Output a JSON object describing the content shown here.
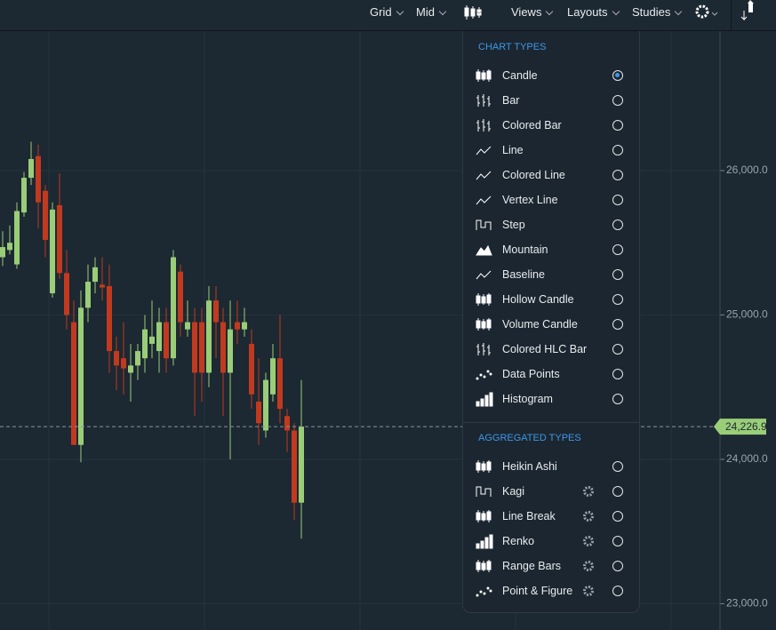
{
  "toolbar": {
    "items": [
      "Grid",
      "Mid",
      "Views",
      "Layouts",
      "Studies"
    ]
  },
  "menu": {
    "chart_types_heading": "CHART TYPES",
    "chart_types": [
      {
        "label": "Candle",
        "selected": true
      },
      {
        "label": "Bar",
        "selected": false
      },
      {
        "label": "Colored Bar",
        "selected": false
      },
      {
        "label": "Line",
        "selected": false
      },
      {
        "label": "Colored Line",
        "selected": false
      },
      {
        "label": "Vertex Line",
        "selected": false
      },
      {
        "label": "Step",
        "selected": false
      },
      {
        "label": "Mountain",
        "selected": false
      },
      {
        "label": "Baseline",
        "selected": false
      },
      {
        "label": "Hollow Candle",
        "selected": false
      },
      {
        "label": "Volume Candle",
        "selected": false
      },
      {
        "label": "Colored HLC Bar",
        "selected": false
      },
      {
        "label": "Data Points",
        "selected": false
      },
      {
        "label": "Histogram",
        "selected": false
      }
    ],
    "aggregated_heading": "AGGREGATED TYPES",
    "aggregated_types": [
      {
        "label": "Heikin Ashi",
        "selected": false,
        "settings": false
      },
      {
        "label": "Kagi",
        "selected": false,
        "settings": true
      },
      {
        "label": "Line Break",
        "selected": false,
        "settings": true
      },
      {
        "label": "Renko",
        "selected": false,
        "settings": true
      },
      {
        "label": "Range Bars",
        "selected": false,
        "settings": true
      },
      {
        "label": "Point & Figure",
        "selected": false,
        "settings": true
      }
    ]
  },
  "price_chart": {
    "ylim": [
      22818,
      26966
    ],
    "yticks": [
      {
        "value": 23000,
        "label": "23,000.0"
      },
      {
        "value": 24000,
        "label": "24,000.0"
      },
      {
        "value": 25000,
        "label": "25,000.0"
      },
      {
        "value": 26000,
        "label": "26,000.0"
      }
    ],
    "current_price": {
      "value": 24226.9,
      "label": "24,226.9"
    },
    "up_color": "#9acd78",
    "down_color": "#c13a1f",
    "candles": [
      {
        "open": 25400,
        "high": 25580,
        "low": 25340,
        "close": 25470
      },
      {
        "open": 25450,
        "high": 25620,
        "low": 25420,
        "close": 25500
      },
      {
        "open": 25350,
        "high": 25780,
        "low": 25320,
        "close": 25720
      },
      {
        "open": 25710,
        "high": 25990,
        "low": 25680,
        "close": 25950
      },
      {
        "open": 25950,
        "high": 26200,
        "low": 25900,
        "close": 26080
      },
      {
        "open": 26100,
        "high": 26180,
        "low": 25600,
        "close": 25780
      },
      {
        "open": 25860,
        "high": 25900,
        "low": 25400,
        "close": 25520
      },
      {
        "open": 25150,
        "high": 25780,
        "low": 25120,
        "close": 25730
      },
      {
        "open": 25760,
        "high": 25980,
        "low": 25250,
        "close": 25290
      },
      {
        "open": 25290,
        "high": 25450,
        "low": 24900,
        "close": 25000
      },
      {
        "open": 24950,
        "high": 25100,
        "low": 24100,
        "close": 24100
      },
      {
        "open": 24100,
        "high": 25170,
        "low": 23980,
        "close": 25050
      },
      {
        "open": 25050,
        "high": 25350,
        "low": 24950,
        "close": 25230
      },
      {
        "open": 25230,
        "high": 25400,
        "low": 25150,
        "close": 25330
      },
      {
        "open": 25210,
        "high": 25400,
        "low": 25100,
        "close": 25190
      },
      {
        "open": 25200,
        "high": 25350,
        "low": 24600,
        "close": 24750
      },
      {
        "open": 24750,
        "high": 24850,
        "low": 24480,
        "close": 24650
      },
      {
        "open": 24700,
        "high": 24950,
        "low": 24450,
        "close": 24630
      },
      {
        "open": 24600,
        "high": 24800,
        "low": 24400,
        "close": 24650
      },
      {
        "open": 24650,
        "high": 24800,
        "low": 24550,
        "close": 24750
      },
      {
        "open": 24700,
        "high": 25000,
        "low": 24600,
        "close": 24900
      },
      {
        "open": 24800,
        "high": 25100,
        "low": 24700,
        "close": 24850
      },
      {
        "open": 24750,
        "high": 25050,
        "low": 24600,
        "close": 24950
      },
      {
        "open": 24950,
        "high": 25050,
        "low": 24600,
        "close": 24700
      },
      {
        "open": 24700,
        "high": 25450,
        "low": 24650,
        "close": 25400
      },
      {
        "open": 25300,
        "high": 25350,
        "low": 24850,
        "close": 24950
      },
      {
        "open": 24900,
        "high": 25100,
        "low": 24850,
        "close": 24950
      },
      {
        "open": 24950,
        "high": 25050,
        "low": 24300,
        "close": 24600
      },
      {
        "open": 24950,
        "high": 25050,
        "low": 24400,
        "close": 24600
      },
      {
        "open": 24600,
        "high": 25200,
        "low": 24500,
        "close": 25100
      },
      {
        "open": 25100,
        "high": 25200,
        "low": 24700,
        "close": 24950
      },
      {
        "open": 24950,
        "high": 25050,
        "low": 24300,
        "close": 24600
      },
      {
        "open": 24600,
        "high": 25100,
        "low": 24000,
        "close": 24900
      },
      {
        "open": 24950,
        "high": 25100,
        "low": 24800,
        "close": 24900
      },
      {
        "open": 24900,
        "high": 25050,
        "low": 24850,
        "close": 24950
      },
      {
        "open": 24800,
        "high": 24900,
        "low": 24350,
        "close": 24450
      },
      {
        "open": 24400,
        "high": 24700,
        "low": 24100,
        "close": 24250
      },
      {
        "open": 24200,
        "high": 24600,
        "low": 24150,
        "close": 24550
      },
      {
        "open": 24450,
        "high": 24800,
        "low": 24400,
        "close": 24700
      },
      {
        "open": 24700,
        "high": 25000,
        "low": 24250,
        "close": 24350
      },
      {
        "open": 24300,
        "high": 24350,
        "low": 24050,
        "close": 24200
      },
      {
        "open": 24200,
        "high": 24250,
        "low": 23580,
        "close": 23700
      },
      {
        "open": 23700,
        "high": 24550,
        "low": 23450,
        "close": 24226.9
      }
    ]
  }
}
